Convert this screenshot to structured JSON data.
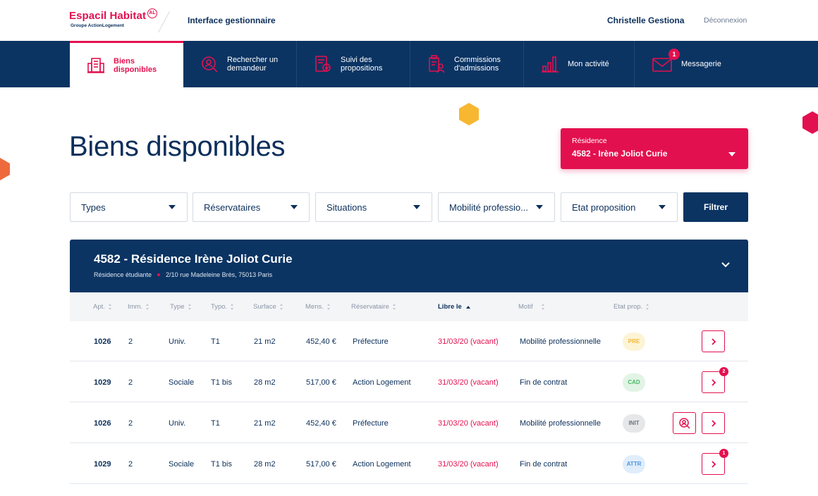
{
  "brand": {
    "name": "Espacil Habitat",
    "badge": "AL",
    "group": "Groupe ActionLogement"
  },
  "header": {
    "app_title": "Interface gestionnaire",
    "user_name": "Christelle Gestiona",
    "logout": "Déconnexion"
  },
  "nav": [
    {
      "label": "Biens\ndisponibles",
      "icon": "building-icon",
      "active": true
    },
    {
      "label": "Rechercher un\ndemandeur",
      "icon": "search-person-icon",
      "active": false
    },
    {
      "label": "Suivi des\npropositions",
      "icon": "document-track-icon",
      "active": false
    },
    {
      "label": "Commissions\nd'admissions",
      "icon": "commission-icon",
      "active": false
    },
    {
      "label": "Mon activité",
      "icon": "bar-chart-icon",
      "active": false
    },
    {
      "label": "Messagerie",
      "icon": "mail-icon",
      "active": false,
      "badge": "1"
    }
  ],
  "page": {
    "title": "Biens disponibles"
  },
  "residence_select": {
    "label": "Résidence",
    "value": "4582 - Irène Joliot Curie"
  },
  "filters": {
    "types": "Types",
    "reservataires": "Réservataires",
    "situations": "Situations",
    "mobilite": "Mobilité professio...",
    "etat": "Etat proposition",
    "submit": "Filtrer"
  },
  "residence": {
    "title": "4582 - Résidence Irène Joliot Curie",
    "kind": "Résidence étudiante",
    "address": "2/10 rue Madeleine Brès, 75013 Paris"
  },
  "table": {
    "columns": {
      "apt": "Apt.",
      "imm": "Imm.",
      "type": "Type",
      "typo": "Typo.",
      "surface": "Surface",
      "mens": "Mens.",
      "reservataire": "Réservataire",
      "libre": "Libre le",
      "motif": "Motif",
      "etat": "Etat prop."
    },
    "rows": [
      {
        "apt": "1026",
        "imm": "2",
        "type": "Univ.",
        "typo": "T1",
        "surface": "21 m2",
        "mens": "452,40 €",
        "reservataire": "Préfecture",
        "libre": "31/03/20 (vacant)",
        "motif": "Mobilité professionnelle",
        "etat": "PRE",
        "etat_bg": "#fdf4d6",
        "etat_fg": "#f0b73a"
      },
      {
        "apt": "1029",
        "imm": "2",
        "type": "Sociale",
        "typo": "T1 bis",
        "surface": "28 m2",
        "mens": "517,00 €",
        "reservataire": "Action Logement",
        "libre": "31/03/20 (vacant)",
        "motif": "Fin de contrat",
        "etat": "CAD",
        "etat_bg": "#e1f4e5",
        "etat_fg": "#4cb867",
        "badge": "2"
      },
      {
        "apt": "1026",
        "imm": "2",
        "type": "Univ.",
        "typo": "T1",
        "surface": "21 m2",
        "mens": "452,40 €",
        "reservataire": "Préfecture",
        "libre": "31/03/20 (vacant)",
        "motif": "Mobilité professionnelle",
        "etat": "INIT",
        "etat_bg": "#e6e7e9",
        "etat_fg": "#6b7380",
        "search": true
      },
      {
        "apt": "1029",
        "imm": "2",
        "type": "Sociale",
        "typo": "T1 bis",
        "surface": "28 m2",
        "mens": "517,00 €",
        "reservataire": "Action Logement",
        "libre": "31/03/20 (vacant)",
        "motif": "Fin de contrat",
        "etat": "ATTR",
        "etat_bg": "#e0edfb",
        "etat_fg": "#4d95e0",
        "badge": "1"
      }
    ]
  },
  "colors": {
    "brand_red": "#e3104f",
    "navy": "#0b3463",
    "hex_yellow": "#f7b731",
    "hex_orange": "#ee6a3c",
    "hex_red": "#e3104f"
  }
}
